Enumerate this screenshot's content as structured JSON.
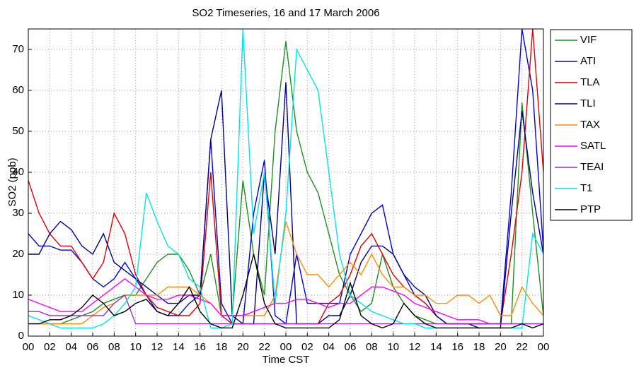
{
  "chart_data": {
    "type": "line",
    "title": "SO2 Timeseries, 16 and 17 March 2006",
    "x_label": "Time CST",
    "y_label": "SO2 (ppb)",
    "x": [
      0,
      1,
      2,
      3,
      4,
      5,
      6,
      7,
      8,
      9,
      10,
      11,
      12,
      13,
      14,
      15,
      16,
      17,
      18,
      19,
      20,
      21,
      22,
      23,
      24,
      25,
      26,
      27,
      28,
      29,
      30,
      31,
      32,
      33,
      34,
      35,
      36,
      37,
      38,
      39,
      40,
      41,
      42,
      43,
      44,
      45,
      46,
      47,
      48
    ],
    "xlim": [
      0,
      48
    ],
    "xticks": [
      {
        "value": 0,
        "label": "00"
      },
      {
        "value": 2,
        "label": "02"
      },
      {
        "value": 4,
        "label": "04"
      },
      {
        "value": 6,
        "label": "06"
      },
      {
        "value": 8,
        "label": "08"
      },
      {
        "value": 10,
        "label": "10"
      },
      {
        "value": 12,
        "label": "12"
      },
      {
        "value": 14,
        "label": "14"
      },
      {
        "value": 16,
        "label": "16"
      },
      {
        "value": 18,
        "label": "18"
      },
      {
        "value": 20,
        "label": "20"
      },
      {
        "value": 22,
        "label": "22"
      },
      {
        "value": 24,
        "label": "00"
      },
      {
        "value": 26,
        "label": "02"
      },
      {
        "value": 28,
        "label": "04"
      },
      {
        "value": 30,
        "label": "06"
      },
      {
        "value": 32,
        "label": "08"
      },
      {
        "value": 34,
        "label": "10"
      },
      {
        "value": 36,
        "label": "12"
      },
      {
        "value": 38,
        "label": "14"
      },
      {
        "value": 40,
        "label": "16"
      },
      {
        "value": 42,
        "label": "18"
      },
      {
        "value": 44,
        "label": "20"
      },
      {
        "value": 46,
        "label": "22"
      },
      {
        "value": 48,
        "label": "00"
      }
    ],
    "ylim": [
      0,
      75
    ],
    "yticks": [
      0,
      10,
      20,
      30,
      40,
      50,
      60,
      70
    ],
    "grid": true,
    "legend": "outside-right",
    "series": [
      {
        "name": "VIF",
        "color": "#1f8f1f",
        "values": [
          3,
          3,
          3,
          3,
          4,
          5,
          6,
          8,
          9,
          10,
          10,
          14,
          18,
          20,
          20,
          16,
          10,
          20,
          5,
          5,
          38,
          20,
          10,
          50,
          72,
          50,
          40,
          35,
          25,
          15,
          10,
          6,
          8,
          20,
          12,
          8,
          5,
          4,
          3,
          3,
          3,
          3,
          3,
          3,
          3,
          3,
          57,
          30,
          5
        ]
      },
      {
        "name": "ATI",
        "color": "#0000dd",
        "values": [
          25,
          22,
          22,
          21,
          21,
          18,
          14,
          12,
          14,
          18,
          14,
          10,
          6,
          5,
          5,
          8,
          10,
          48,
          8,
          3,
          3,
          30,
          43,
          5,
          3,
          20,
          8,
          8,
          8,
          8,
          20,
          25,
          30,
          32,
          20,
          15,
          10,
          8,
          5,
          3,
          3,
          3,
          3,
          3,
          3,
          35,
          75,
          60,
          21
        ]
      },
      {
        "name": "TLA",
        "color": "#e00000",
        "values": [
          38,
          30,
          25,
          22,
          22,
          18,
          14,
          18,
          30,
          25,
          15,
          10,
          7,
          6,
          5,
          5,
          8,
          40,
          5,
          3,
          3,
          3,
          3,
          3,
          3,
          3,
          3,
          3,
          8,
          10,
          15,
          22,
          25,
          20,
          15,
          12,
          10,
          8,
          5,
          3,
          3,
          3,
          3,
          3,
          3,
          20,
          40,
          75,
          40
        ]
      },
      {
        "name": "TLI",
        "color": "#00008b",
        "values": [
          20,
          20,
          25,
          28,
          26,
          22,
          20,
          25,
          18,
          16,
          14,
          12,
          10,
          8,
          8,
          10,
          10,
          48,
          60,
          5,
          3,
          3,
          40,
          20,
          62,
          3,
          3,
          3,
          5,
          5,
          10,
          18,
          22,
          22,
          20,
          15,
          12,
          10,
          5,
          3,
          3,
          3,
          2,
          2,
          2,
          30,
          55,
          35,
          20
        ]
      },
      {
        "name": "TAX",
        "color": "#ff8c00",
        "values": [
          3,
          3,
          3,
          3,
          3,
          3,
          5,
          7,
          8,
          10,
          10,
          10,
          10,
          12,
          12,
          12,
          10,
          8,
          5,
          5,
          5,
          5,
          5,
          10,
          28,
          20,
          15,
          15,
          12,
          15,
          18,
          15,
          20,
          15,
          12,
          12,
          10,
          10,
          8,
          8,
          10,
          10,
          8,
          10,
          5,
          5,
          12,
          8,
          5
        ]
      },
      {
        "name": "SATL",
        "color": "#ff00ff",
        "values": [
          9,
          8,
          7,
          6,
          6,
          6,
          8,
          10,
          12,
          14,
          12,
          10,
          9,
          9,
          10,
          10,
          9,
          8,
          5,
          5,
          5,
          6,
          7,
          8,
          8,
          9,
          9,
          8,
          7,
          8,
          8,
          10,
          12,
          12,
          11,
          10,
          8,
          7,
          6,
          5,
          4,
          4,
          4,
          3,
          3,
          3,
          3,
          3,
          3
        ]
      },
      {
        "name": "TEAI",
        "color": "#9933cc",
        "values": [
          6,
          6,
          5,
          5,
          5,
          5,
          5,
          5,
          8,
          10,
          3,
          3,
          3,
          3,
          3,
          3,
          3,
          3,
          3,
          3,
          3,
          3,
          3,
          3,
          3,
          3,
          3,
          3,
          3,
          3,
          3,
          3,
          3,
          3,
          3,
          3,
          3,
          3,
          3,
          3,
          3,
          3,
          3,
          3,
          3,
          3,
          3,
          3,
          3
        ]
      },
      {
        "name": "T1",
        "color": "#00e5e5",
        "values": [
          5,
          4,
          3,
          2,
          2,
          2,
          2,
          3,
          5,
          8,
          12,
          35,
          28,
          22,
          20,
          14,
          12,
          2,
          2,
          3,
          75,
          25,
          40,
          8,
          30,
          70,
          65,
          60,
          40,
          20,
          10,
          8,
          6,
          5,
          4,
          3,
          3,
          2,
          2,
          2,
          2,
          2,
          2,
          2,
          2,
          2,
          2,
          25,
          20
        ]
      },
      {
        "name": "PTP",
        "color": "#000000",
        "values": [
          3,
          3,
          4,
          4,
          5,
          7,
          10,
          8,
          5,
          6,
          8,
          9,
          6,
          5,
          8,
          12,
          6,
          3,
          2,
          2,
          10,
          20,
          8,
          3,
          2,
          2,
          2,
          2,
          2,
          4,
          13,
          5,
          3,
          2,
          3,
          8,
          5,
          3,
          2,
          2,
          2,
          2,
          2,
          2,
          2,
          2,
          3,
          2,
          3
        ]
      }
    ]
  }
}
